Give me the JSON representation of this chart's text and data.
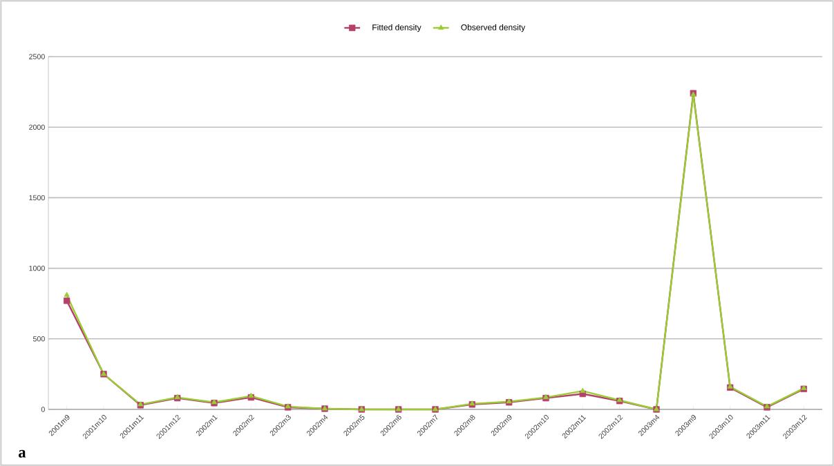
{
  "chart_data": {
    "type": "line",
    "categories": [
      "2001m9",
      "2001m10",
      "2001m11",
      "2001m12",
      "2002m1",
      "2002m2",
      "2002m3",
      "2002m4",
      "2002m5",
      "2002m6",
      "2002m7",
      "2002m8",
      "2002m9",
      "2002m10",
      "2002m11",
      "2002m12",
      "2003m4",
      "2003m9",
      "2003m10",
      "2003m11",
      "2003m12"
    ],
    "series": [
      {
        "name": "Fitted density",
        "color": "#b5416b",
        "marker": "square",
        "values": [
          770,
          250,
          30,
          80,
          45,
          85,
          15,
          5,
          0,
          0,
          0,
          35,
          50,
          80,
          110,
          60,
          0,
          2240,
          155,
          15,
          145
        ]
      },
      {
        "name": "Observed density",
        "color": "#9acd32",
        "marker": "triangle",
        "values": [
          810,
          250,
          35,
          85,
          50,
          95,
          20,
          5,
          0,
          0,
          0,
          40,
          55,
          85,
          130,
          65,
          0,
          2230,
          160,
          20,
          150
        ]
      }
    ],
    "ylim": [
      0,
      2500
    ],
    "yticks": [
      0,
      500,
      1000,
      1500,
      2000,
      2500
    ],
    "grid": "y",
    "legend": "top",
    "line_style": "solid",
    "annotations": [
      "a"
    ]
  }
}
